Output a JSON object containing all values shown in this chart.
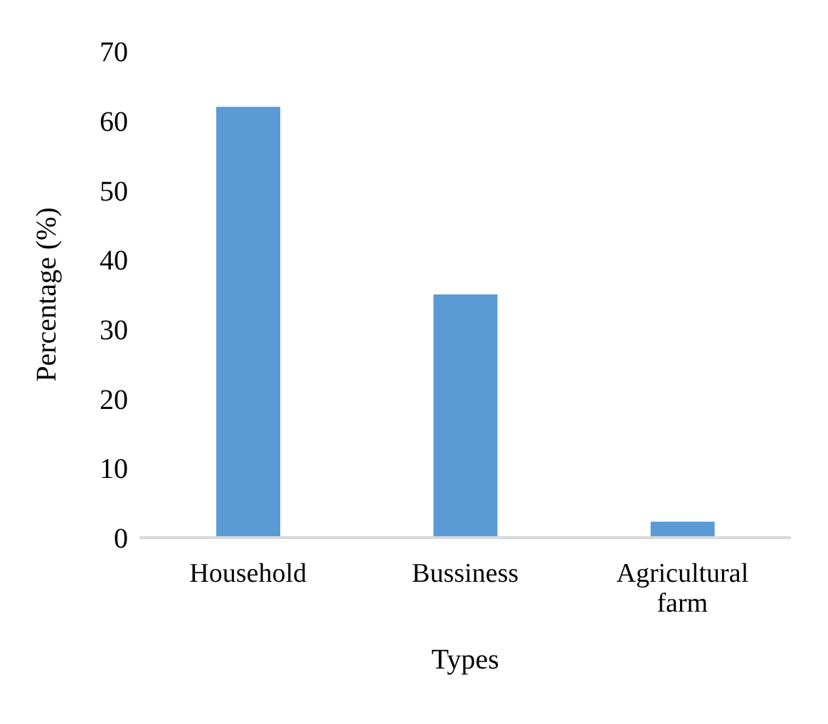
{
  "chart_data": {
    "type": "bar",
    "xlabel": "Types",
    "ylabel": "Percentage (%)",
    "categories": [
      "Household",
      "Bussiness",
      "Agricultural farm"
    ],
    "values": [
      62,
      35,
      2.3
    ],
    "color": "#5b9bd5",
    "ylim": [
      0,
      70
    ],
    "yticks": [
      0,
      10,
      20,
      30,
      40,
      50,
      60,
      70
    ],
    "grid": false
  }
}
